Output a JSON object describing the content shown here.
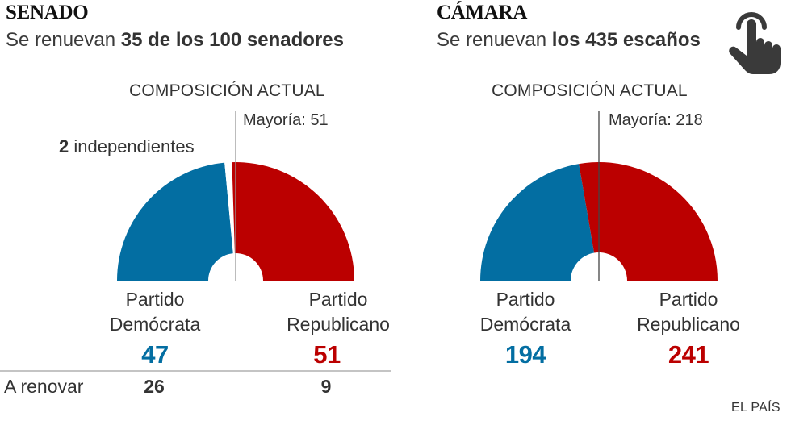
{
  "colors": {
    "democrat": "#036ea2",
    "republican": "#bb0000",
    "independent": "#ffffff",
    "majority_line": "#555555",
    "text": "#333333"
  },
  "chart_data": [
    {
      "type": "pie",
      "variant": "half-donut",
      "title": "SENADO",
      "subtitle_prefix": "Se renuevan ",
      "subtitle_bold": "35 de los 100 senadores",
      "heading": "COMPOSICIÓN ACTUAL",
      "total": 100,
      "majority_label": "Mayoría: 51",
      "majority": 51,
      "independents_count": "2",
      "independents_label": " independientes",
      "slices": [
        {
          "name": "Partido Demócrata",
          "name_line1": "Partido",
          "name_line2": "Demócrata",
          "value": 47,
          "value_label": "47",
          "color": "#036ea2",
          "to_renew": "26"
        },
        {
          "name": "Independientes",
          "value": 2,
          "color": "#ffffff"
        },
        {
          "name": "Partido Republicano",
          "name_line1": "Partido",
          "name_line2": "Republicano",
          "value": 51,
          "value_label": "51",
          "color": "#bb0000",
          "to_renew": "9"
        }
      ],
      "renew_label": "A renovar"
    },
    {
      "type": "pie",
      "variant": "half-donut",
      "title": "CÁMARA",
      "subtitle_prefix": "Se renuevan ",
      "subtitle_bold": "los 435 escaños",
      "heading": "COMPOSICIÓN ACTUAL",
      "total": 435,
      "majority_label": "Mayoría: 218",
      "majority": 218,
      "slices": [
        {
          "name": "Partido Demócrata",
          "name_line1": "Partido",
          "name_line2": "Demócrata",
          "value": 194,
          "value_label": "194",
          "color": "#036ea2"
        },
        {
          "name": "Partido Republicano",
          "name_line1": "Partido",
          "name_line2": "Republicano",
          "value": 241,
          "value_label": "241",
          "color": "#bb0000"
        }
      ]
    }
  ],
  "interaction_icon": "hand-pointer-tap-icon",
  "credit": "EL PAÍS"
}
